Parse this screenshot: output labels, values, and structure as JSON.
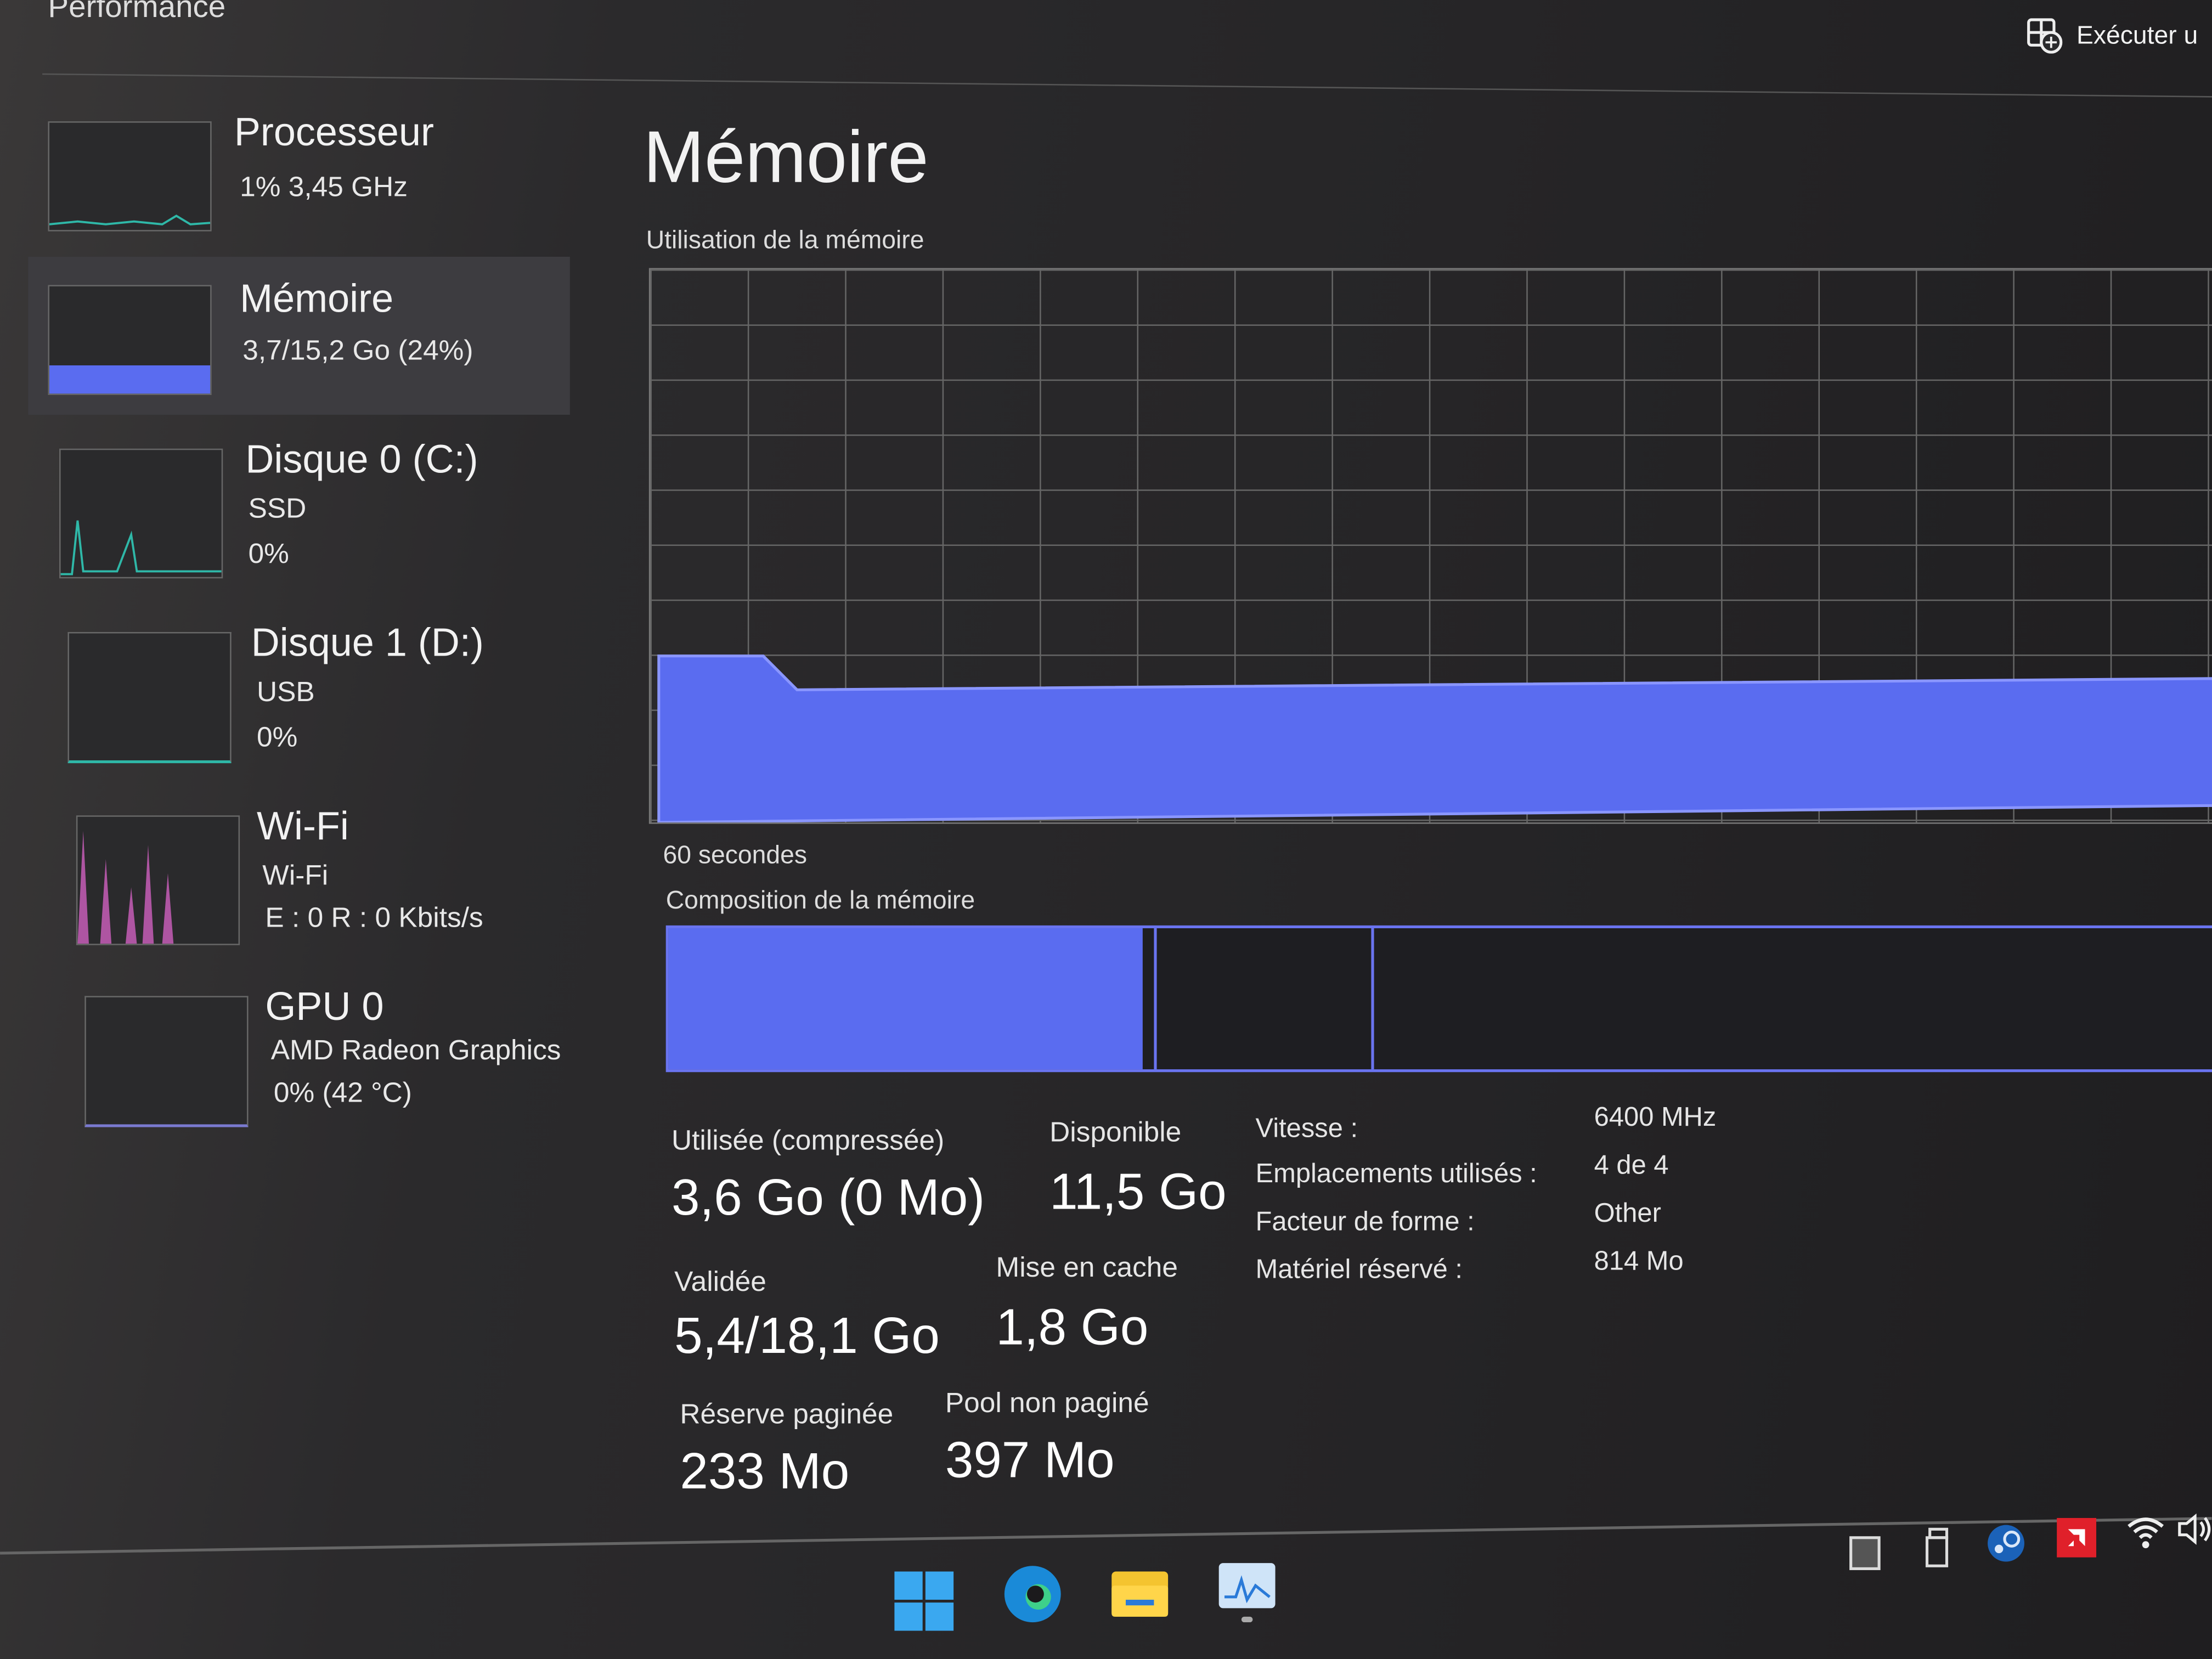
{
  "header": {
    "title": "Performance",
    "run_task_label": "Exécuter u"
  },
  "sidebar": {
    "items": [
      {
        "name": "Processeur",
        "sub1": "1%  3,45 GHz",
        "color": "#2fb8a8"
      },
      {
        "name": "Mémoire",
        "sub1": "3,7/15,2 Go (24%)",
        "color": "#5a6cf0",
        "selected": true
      },
      {
        "name": "Disque 0 (C:)",
        "sub1": "SSD",
        "sub2": "0%",
        "color": "#2fb8a8"
      },
      {
        "name": "Disque 1 (D:)",
        "sub1": "USB",
        "sub2": "0%",
        "color": "#2fb8a8"
      },
      {
        "name": "Wi-Fi",
        "sub1": "Wi-Fi",
        "sub2": "E : 0  R : 0 Kbits/s",
        "color": "#d060c0"
      },
      {
        "name": "GPU 0",
        "sub1": "AMD Radeon Graphics",
        "sub2": "0%  (42 °C)",
        "color": "#7a7ad0"
      }
    ]
  },
  "main": {
    "title": "Mémoire",
    "usage_label": "Utilisation de la mémoire",
    "time_label": "60 secondes",
    "composition_label": "Composition de la mémoire",
    "usage_percent": 24,
    "stats": {
      "used_label": "Utilisée (compressée)",
      "used_value": "3,6 Go (0 Mo)",
      "available_label": "Disponible",
      "available_value": "11,5 Go",
      "committed_label": "Validée",
      "committed_value": "5,4/18,1 Go",
      "cached_label": "Mise en cache",
      "cached_value": "1,8 Go",
      "paged_label": "Réserve paginée",
      "paged_value": "233 Mo",
      "nonpaged_label": "Pool non paginé",
      "nonpaged_value": "397 Mo"
    },
    "details": [
      {
        "k": "Vitesse :",
        "v": "6400 MHz"
      },
      {
        "k": "Emplacements utilisés :",
        "v": "4 de 4"
      },
      {
        "k": "Facteur de forme :",
        "v": "Other"
      },
      {
        "k": "Matériel réservé :",
        "v": "814 Mo"
      }
    ],
    "accent": "#5a6cf0"
  },
  "taskbar": {
    "icons": [
      "windows-start-icon",
      "edge-icon",
      "file-explorer-icon",
      "task-manager-icon"
    ],
    "tray": [
      "tray-app-icon",
      "usb-drive-icon",
      "steam-icon",
      "amd-icon",
      "wifi-icon",
      "volume-icon"
    ]
  }
}
